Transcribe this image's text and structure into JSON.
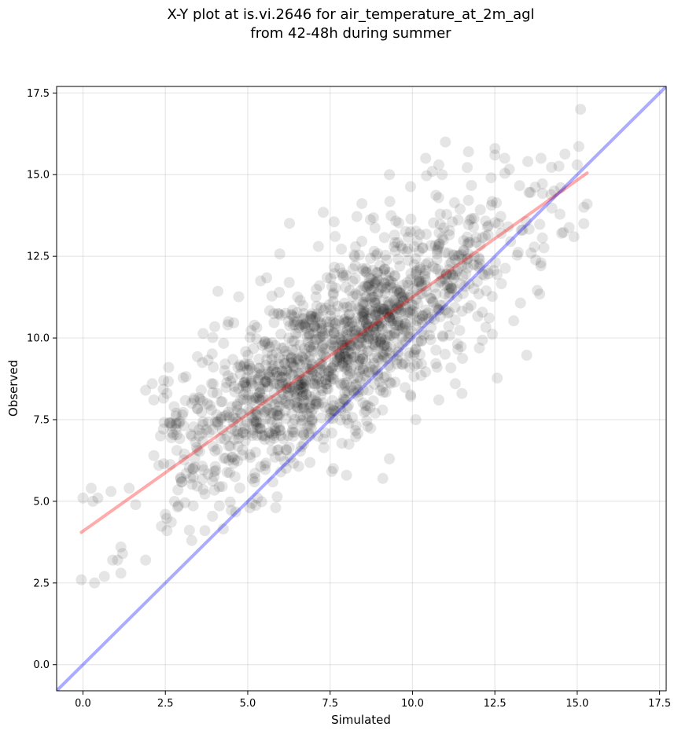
{
  "chart_data": {
    "type": "scatter",
    "title": [
      "X-Y plot at is.vi.2646 for air_temperature_at_2m_agl",
      "from 42-48h during summer"
    ],
    "xlabel": "Simulated",
    "ylabel": "Observed",
    "xlim": [
      -0.8,
      17.7
    ],
    "ylim": [
      -0.8,
      17.7
    ],
    "xticks": [
      0.0,
      2.5,
      5.0,
      7.5,
      10.0,
      12.5,
      15.0,
      17.5
    ],
    "yticks": [
      0.0,
      2.5,
      5.0,
      7.5,
      10.0,
      12.5,
      15.0,
      17.5
    ],
    "xtick_labels": [
      "0.0",
      "2.5",
      "5.0",
      "7.5",
      "10.0",
      "12.5",
      "15.0",
      "17.5"
    ],
    "ytick_labels": [
      "0.0",
      "2.5",
      "5.0",
      "7.5",
      "10.0",
      "12.5",
      "15.0",
      "17.5"
    ],
    "grid": true,
    "point_color": "#000000",
    "point_alpha": 0.1,
    "points": [
      [
        -0.05,
        2.6
      ],
      [
        0.35,
        2.5
      ],
      [
        0.0,
        5.1
      ],
      [
        0.3,
        5.0
      ],
      [
        0.25,
        5.4
      ],
      [
        0.45,
        5.1
      ],
      [
        0.65,
        2.7
      ],
      [
        0.9,
        3.2
      ],
      [
        0.85,
        5.3
      ],
      [
        1.15,
        3.6
      ],
      [
        1.15,
        2.8
      ],
      [
        1.2,
        3.4
      ],
      [
        1.05,
        3.2
      ],
      [
        1.4,
        5.4
      ],
      [
        1.6,
        4.9
      ],
      [
        1.9,
        3.2
      ],
      [
        1.9,
        8.4
      ],
      [
        2.1,
        8.6
      ],
      [
        2.15,
        8.1
      ],
      [
        2.15,
        6.4
      ],
      [
        2.3,
        6.1
      ],
      [
        2.35,
        7.0
      ],
      [
        2.45,
        8.7
      ],
      [
        2.55,
        8.3
      ],
      [
        2.6,
        9.1
      ],
      [
        2.55,
        4.1
      ],
      [
        2.5,
        4.6
      ],
      [
        2.7,
        7.1
      ],
      [
        3.3,
        3.8
      ],
      [
        3.7,
        4.1
      ],
      [
        3.3,
        8.0
      ],
      [
        3.9,
        8.6
      ],
      [
        4.3,
        9.0
      ],
      [
        4.7,
        9.1
      ],
      [
        3.0,
        5.6
      ],
      [
        3.3,
        7.0
      ],
      [
        14.9,
        13.1
      ],
      [
        15.0,
        15.3
      ],
      [
        15.1,
        17.0
      ],
      [
        15.2,
        13.5
      ],
      [
        15.2,
        14.0
      ],
      [
        15.3,
        14.1
      ],
      [
        14.3,
        14.5
      ],
      [
        14.5,
        14.6
      ],
      [
        13.5,
        15.4
      ],
      [
        13.9,
        15.5
      ],
      [
        13.6,
        12.6
      ],
      [
        13.9,
        12.3
      ],
      [
        13.3,
        13.3
      ],
      [
        11.7,
        15.7
      ],
      [
        11.0,
        16.0
      ],
      [
        12.5,
        15.6
      ],
      [
        12.5,
        15.8
      ],
      [
        12.8,
        15.5
      ],
      [
        10.9,
        15.0
      ],
      [
        10.6,
        15.1
      ],
      [
        9.3,
        15.0
      ],
      [
        10.4,
        15.5
      ],
      [
        10.8,
        15.3
      ],
      [
        9.1,
        5.7
      ],
      [
        9.3,
        6.3
      ],
      [
        10.1,
        7.5
      ],
      [
        8.0,
        5.8
      ],
      [
        6.0,
        5.9
      ],
      [
        5.3,
        5.1
      ],
      [
        7.6,
        6.0
      ],
      [
        10.8,
        8.1
      ],
      [
        11.3,
        8.6
      ],
      [
        11.5,
        8.3
      ],
      [
        7.1,
        10.3
      ]
    ],
    "cloud": {
      "count": 1500,
      "seed": 2646,
      "mean": [
        7.7,
        9.6
      ],
      "sd_x": 2.6,
      "sd_y": 2.15,
      "correlation": 0.78,
      "x_range": [
        2.3,
        15.3
      ],
      "y_range": [
        4.0,
        16.3
      ]
    },
    "lines": [
      {
        "name": "fit",
        "color": "#ff0000",
        "alpha": 0.33,
        "x": [
          -0.05,
          15.3
        ],
        "y": [
          4.05,
          15.05
        ]
      },
      {
        "name": "one-to-one",
        "color": "#0000ff",
        "alpha": 0.33,
        "x": [
          -0.8,
          17.7
        ],
        "y": [
          -0.8,
          17.7
        ]
      }
    ]
  }
}
